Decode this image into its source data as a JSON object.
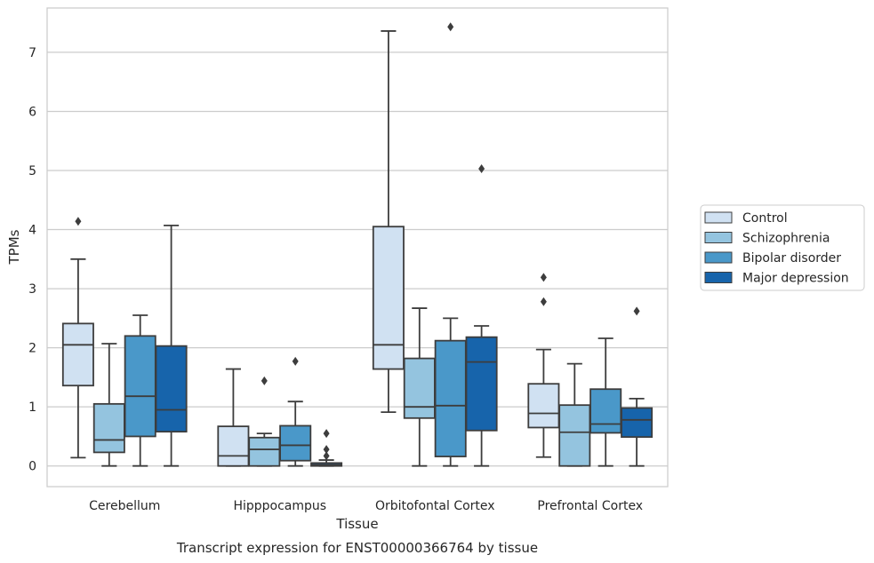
{
  "chart_data": {
    "type": "box",
    "title": "",
    "caption": "Transcript expression for ENST00000366764 by tissue",
    "xlabel": "Tissue",
    "ylabel": "TPMs",
    "ylim": [
      -0.35,
      7.75
    ],
    "yticks": [
      0,
      1,
      2,
      3,
      4,
      5,
      6,
      7
    ],
    "grid": "horizontal",
    "legend_position": "right",
    "categories": [
      "Cerebellum",
      "Hipppocampus",
      "Orbitofontal Cortex",
      "Prefrontal Cortex"
    ],
    "series": [
      {
        "name": "Control",
        "color": "#d0e1f2",
        "boxes": [
          {
            "min": 0.14,
            "q1": 1.36,
            "median": 2.05,
            "q3": 2.41,
            "max": 3.5,
            "outliers": [
              4.14
            ]
          },
          {
            "min": 0.0,
            "q1": 0.0,
            "median": 0.17,
            "q3": 0.67,
            "max": 1.64,
            "outliers": []
          },
          {
            "min": 0.91,
            "q1": 1.64,
            "median": 2.05,
            "q3": 4.05,
            "max": 7.36,
            "outliers": []
          },
          {
            "min": 0.15,
            "q1": 0.65,
            "median": 0.89,
            "q3": 1.39,
            "max": 1.97,
            "outliers": [
              2.78,
              3.19
            ]
          }
        ]
      },
      {
        "name": "Schizophrenia",
        "color": "#94c4df",
        "boxes": [
          {
            "min": 0.0,
            "q1": 0.23,
            "median": 0.44,
            "q3": 1.05,
            "max": 2.07,
            "outliers": []
          },
          {
            "min": 0.0,
            "q1": 0.0,
            "median": 0.28,
            "q3": 0.48,
            "max": 0.55,
            "outliers": [
              1.44
            ]
          },
          {
            "min": 0.0,
            "q1": 0.81,
            "median": 1.0,
            "q3": 1.82,
            "max": 2.67,
            "outliers": []
          },
          {
            "min": 0.0,
            "q1": 0.0,
            "median": 0.57,
            "q3": 1.03,
            "max": 1.73,
            "outliers": []
          }
        ]
      },
      {
        "name": "Bipolar disorder",
        "color": "#4a98c9",
        "boxes": [
          {
            "min": 0.0,
            "q1": 0.5,
            "median": 1.18,
            "q3": 2.2,
            "max": 2.55,
            "outliers": []
          },
          {
            "min": 0.0,
            "q1": 0.09,
            "median": 0.35,
            "q3": 0.68,
            "max": 1.09,
            "outliers": [
              1.77
            ]
          },
          {
            "min": 0.0,
            "q1": 0.16,
            "median": 1.02,
            "q3": 2.12,
            "max": 2.5,
            "outliers": [
              7.43
            ]
          },
          {
            "min": 0.0,
            "q1": 0.56,
            "median": 0.71,
            "q3": 1.3,
            "max": 2.16,
            "outliers": []
          }
        ]
      },
      {
        "name": "Major depression",
        "color": "#1764ab",
        "boxes": [
          {
            "min": 0.0,
            "q1": 0.58,
            "median": 0.95,
            "q3": 2.03,
            "max": 4.07,
            "outliers": []
          },
          {
            "min": 0.0,
            "q1": 0.0,
            "median": 0.02,
            "q3": 0.05,
            "max": 0.1,
            "outliers": [
              0.17,
              0.28,
              0.55
            ]
          },
          {
            "min": 0.0,
            "q1": 0.6,
            "median": 1.76,
            "q3": 2.18,
            "max": 2.37,
            "outliers": [
              5.03
            ]
          },
          {
            "min": 0.0,
            "q1": 0.49,
            "median": 0.78,
            "q3": 0.98,
            "max": 1.14,
            "outliers": [
              2.62
            ]
          }
        ]
      }
    ]
  }
}
